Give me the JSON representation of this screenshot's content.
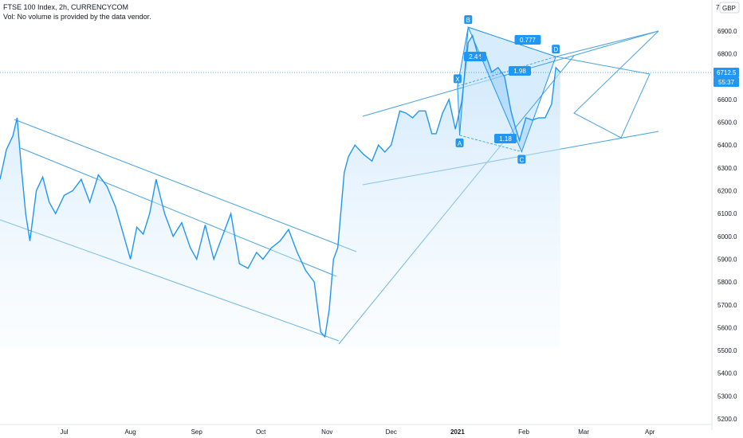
{
  "legend": {
    "title": "FTSE 100 Index, 2h, CURRENCYCOM",
    "volume_note": "Vol: No volume is provided by the data vendor."
  },
  "toolbar": {
    "scale_label": "GBP",
    "top_symbol": "7"
  },
  "price_tags": {
    "last_price": "6712.5",
    "countdown": "55:37"
  },
  "colors": {
    "line": "#2196f3",
    "fill": "#e3f2fd",
    "tag_bg": "#2196f3"
  },
  "chart_data": {
    "type": "line",
    "title": "FTSE 100 Index, 2h, CURRENCYCOM",
    "ylim": [
      5180,
      7020
    ],
    "y_ticks": [
      "6900.0",
      "6800.0",
      "6700.0",
      "6600.0",
      "6500.0",
      "6400.0",
      "6300.0",
      "6200.0",
      "6100.0",
      "6000.0",
      "5900.0",
      "5800.0",
      "5700.0",
      "5600.0",
      "5500.0",
      "5400.0",
      "5300.0",
      "5200.0"
    ],
    "x_ticks": [
      "Jul",
      "Aug",
      "Sep",
      "Oct",
      "Nov",
      "Dec",
      "2021",
      "Feb",
      "Mar",
      "Apr"
    ],
    "x_tick_bold": "2021",
    "series": [
      {
        "points": [
          [
            "2020-06-01",
            6250
          ],
          [
            "2020-06-04",
            6380
          ],
          [
            "2020-06-07",
            6440
          ],
          [
            "2020-06-09",
            6520
          ],
          [
            "2020-06-11",
            6300
          ],
          [
            "2020-06-13",
            6100
          ],
          [
            "2020-06-15",
            5980
          ],
          [
            "2020-06-18",
            6200
          ],
          [
            "2020-06-21",
            6260
          ],
          [
            "2020-06-24",
            6150
          ],
          [
            "2020-06-27",
            6100
          ],
          [
            "2020-07-01",
            6180
          ],
          [
            "2020-07-05",
            6200
          ],
          [
            "2020-07-09",
            6250
          ],
          [
            "2020-07-13",
            6150
          ],
          [
            "2020-07-17",
            6270
          ],
          [
            "2020-07-21",
            6220
          ],
          [
            "2020-07-25",
            6130
          ],
          [
            "2020-07-29",
            6000
          ],
          [
            "2020-08-01",
            5900
          ],
          [
            "2020-08-04",
            6040
          ],
          [
            "2020-08-07",
            6010
          ],
          [
            "2020-08-10",
            6100
          ],
          [
            "2020-08-13",
            6250
          ],
          [
            "2020-08-17",
            6100
          ],
          [
            "2020-08-21",
            6000
          ],
          [
            "2020-08-25",
            6060
          ],
          [
            "2020-08-29",
            5950
          ],
          [
            "2020-09-01",
            5900
          ],
          [
            "2020-09-05",
            6050
          ],
          [
            "2020-09-09",
            5900
          ],
          [
            "2020-09-13",
            6000
          ],
          [
            "2020-09-17",
            6100
          ],
          [
            "2020-09-21",
            5880
          ],
          [
            "2020-09-25",
            5860
          ],
          [
            "2020-09-29",
            5930
          ],
          [
            "2020-10-02",
            5900
          ],
          [
            "2020-10-06",
            5950
          ],
          [
            "2020-10-10",
            5980
          ],
          [
            "2020-10-14",
            6030
          ],
          [
            "2020-10-18",
            5930
          ],
          [
            "2020-10-22",
            5850
          ],
          [
            "2020-10-26",
            5800
          ],
          [
            "2020-10-29",
            5580
          ],
          [
            "2020-10-31",
            5560
          ],
          [
            "2020-11-02",
            5680
          ],
          [
            "2020-11-04",
            5900
          ],
          [
            "2020-11-06",
            5950
          ],
          [
            "2020-11-09",
            6280
          ],
          [
            "2020-11-11",
            6350
          ],
          [
            "2020-11-14",
            6400
          ],
          [
            "2020-11-18",
            6360
          ],
          [
            "2020-11-22",
            6330
          ],
          [
            "2020-11-25",
            6400
          ],
          [
            "2020-11-28",
            6370
          ],
          [
            "2020-12-01",
            6400
          ],
          [
            "2020-12-05",
            6550
          ],
          [
            "2020-12-08",
            6540
          ],
          [
            "2020-12-11",
            6520
          ],
          [
            "2020-12-14",
            6550
          ],
          [
            "2020-12-17",
            6550
          ],
          [
            "2020-12-20",
            6450
          ],
          [
            "2020-12-22",
            6450
          ],
          [
            "2020-12-25",
            6540
          ],
          [
            "2020-12-28",
            6600
          ],
          [
            "2020-12-31",
            6470
          ],
          [
            "2021-01-03",
            6590
          ],
          [
            "2021-01-06",
            6850
          ],
          [
            "2021-01-08",
            6880
          ],
          [
            "2021-01-11",
            6780
          ],
          [
            "2021-01-14",
            6800
          ],
          [
            "2021-01-17",
            6720
          ],
          [
            "2021-01-20",
            6740
          ],
          [
            "2021-01-23",
            6700
          ],
          [
            "2021-01-26",
            6550
          ],
          [
            "2021-01-28",
            6480
          ],
          [
            "2021-01-30",
            6420
          ],
          [
            "2021-02-02",
            6520
          ],
          [
            "2021-02-05",
            6510
          ],
          [
            "2021-02-08",
            6520
          ],
          [
            "2021-02-11",
            6520
          ],
          [
            "2021-02-14",
            6580
          ],
          [
            "2021-02-16",
            6740
          ],
          [
            "2021-02-18",
            6720
          ]
        ]
      }
    ],
    "pattern_points": [
      {
        "label": "X",
        "x": "2021-01-01",
        "y": 6658
      },
      {
        "label": "A",
        "x": "2021-01-02",
        "y": 6443
      },
      {
        "label": "B",
        "x": "2021-01-06",
        "y": 6917
      },
      {
        "label": "C",
        "x": "2021-01-31",
        "y": 6371
      },
      {
        "label": "D",
        "x": "2021-02-16",
        "y": 6788
      }
    ],
    "ratio_labels": [
      "0.777",
      "2.44",
      "1.18",
      "1.98"
    ]
  }
}
